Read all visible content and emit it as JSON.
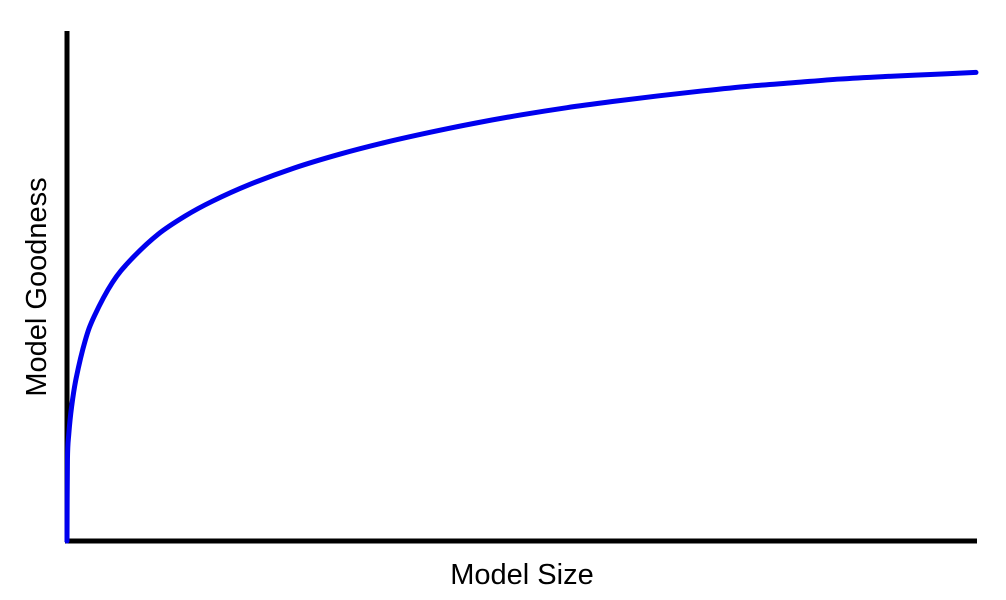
{
  "chart_data": {
    "type": "line",
    "title": "",
    "xlabel": "Model Size",
    "ylabel": "Model Goodness",
    "xlim": [
      0,
      1
    ],
    "ylim": [
      0,
      1
    ],
    "grid": false,
    "series": [
      {
        "color": "#0000ee",
        "x": [
          0,
          0.0005,
          0.002,
          0.005,
          0.01,
          0.02,
          0.03,
          0.05,
          0.07,
          0.1,
          0.13,
          0.16,
          0.2,
          0.25,
          0.3,
          0.35,
          0.4,
          0.45,
          0.5,
          0.55,
          0.6,
          0.65,
          0.7,
          0.75,
          0.8,
          0.85,
          0.9,
          0.95,
          1.0
        ],
        "y": [
          0,
          0.16,
          0.21,
          0.262,
          0.318,
          0.392,
          0.44,
          0.506,
          0.55,
          0.6,
          0.636,
          0.665,
          0.697,
          0.73,
          0.757,
          0.78,
          0.8,
          0.818,
          0.834,
          0.848,
          0.86,
          0.871,
          0.881,
          0.89,
          0.897,
          0.904,
          0.909,
          0.913,
          0.917
        ]
      }
    ],
    "colors": {
      "axis": "#000000",
      "line": "#0000ee"
    }
  }
}
